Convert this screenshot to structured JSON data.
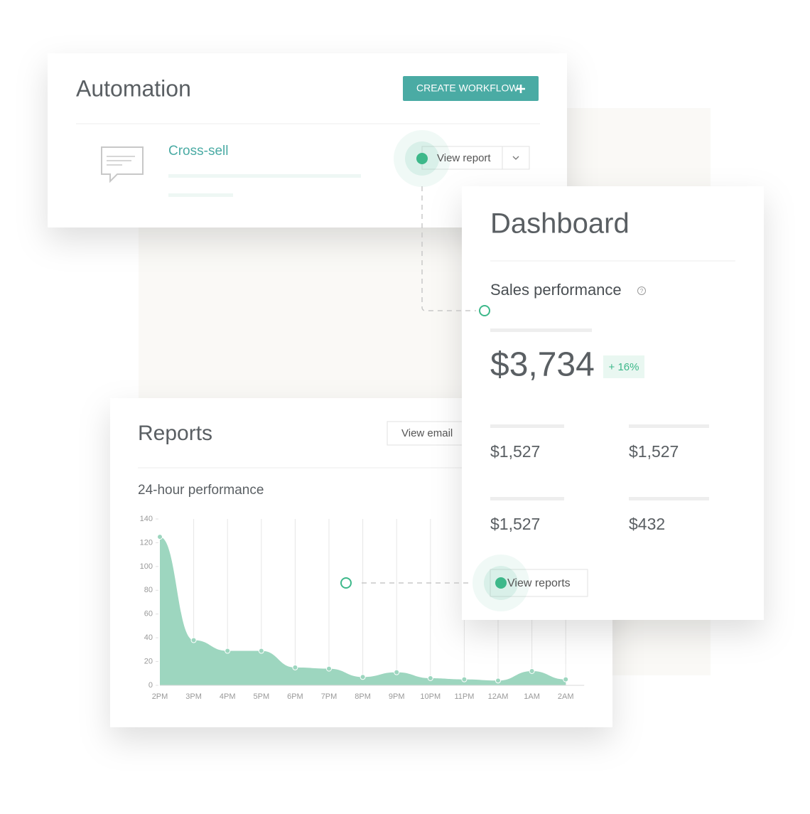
{
  "automation": {
    "title": "Automation",
    "button": "CREATE WORKFLOW",
    "workflow": {
      "name": "Cross-sell",
      "action": "View report"
    }
  },
  "dashboard": {
    "title": "Dashboard",
    "section": "Sales performance",
    "total": "$3,734",
    "change": "+ 16%",
    "metrics": [
      "$1,527",
      "$1,527",
      "$1,527",
      "$432"
    ],
    "action": "View reports"
  },
  "reports": {
    "title": "Reports",
    "action": "View email"
  },
  "chart_data": {
    "type": "area",
    "title": "24-hour performance",
    "categories": [
      "2PM",
      "3PM",
      "4PM",
      "5PM",
      "6PM",
      "7PM",
      "8PM",
      "9PM",
      "10PM",
      "11PM",
      "12AM",
      "1AM",
      "2AM"
    ],
    "values": [
      125,
      38,
      29,
      29,
      15,
      14,
      7,
      11,
      6,
      5,
      4,
      12,
      5
    ],
    "color": "#9dd6bf",
    "ylim": [
      0,
      140
    ],
    "yticks": [
      0,
      20,
      40,
      60,
      80,
      100,
      120,
      140
    ]
  }
}
